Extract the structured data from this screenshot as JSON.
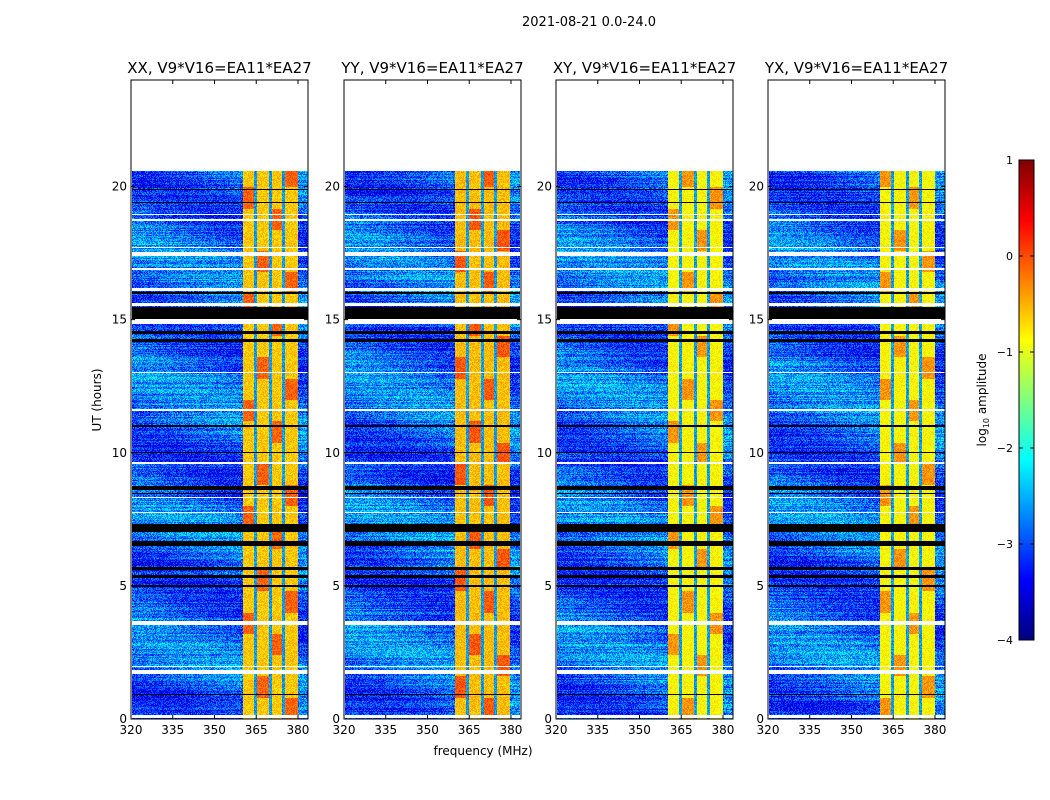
{
  "chart_data": {
    "type": "heatmap",
    "suptitle": "2021-08-21 0.0-24.0",
    "xlabel": "frequency (MHz)",
    "ylabel": "UT (hours)",
    "xlim": [
      320,
      383.6
    ],
    "ylim": [
      0,
      24
    ],
    "xticks": [
      320,
      335,
      350,
      365,
      380
    ],
    "yticks": [
      0,
      5,
      10,
      15,
      20
    ],
    "data_time_range": [
      0,
      20.6
    ],
    "panels": [
      {
        "title": "XX, V9*V16=EA11*EA27",
        "band_level": -0.6
      },
      {
        "title": "YY, V9*V16=EA11*EA27",
        "band_level": -0.55
      },
      {
        "title": "XY, V9*V16=EA11*EA27",
        "band_level": -0.85
      },
      {
        "title": "YX, V9*V16=EA11*EA27",
        "band_level": -0.85
      }
    ],
    "rfi_band_mhz": [
      360,
      380
    ],
    "rfi_band_gaps_mhz": [
      364.6,
      370,
      374.7
    ],
    "background_level": -2.9,
    "flagged_white_hours": [
      [
        0.05,
        0.15
      ],
      [
        1.7,
        1.85
      ],
      [
        1.95,
        2.0
      ],
      [
        3.55,
        3.7
      ],
      [
        7.75,
        7.8
      ],
      [
        8.3,
        8.35
      ],
      [
        9.6,
        9.65
      ],
      [
        11.6,
        11.65
      ],
      [
        13.0,
        13.05
      ],
      [
        14.85,
        15.05
      ],
      [
        15.55,
        15.65
      ],
      [
        16.1,
        16.2
      ],
      [
        16.9,
        16.95
      ],
      [
        17.4,
        17.55
      ],
      [
        17.7,
        17.75
      ],
      [
        18.75,
        18.8
      ],
      [
        18.95,
        19.0
      ],
      [
        20.6,
        24
      ]
    ],
    "black_hours": [
      [
        15.05,
        15.5
      ],
      [
        14.5,
        14.6
      ],
      [
        14.2,
        14.3
      ],
      [
        8.6,
        8.75
      ],
      [
        8.45,
        8.5
      ],
      [
        7.05,
        7.35
      ],
      [
        6.5,
        6.7
      ],
      [
        5.6,
        5.7
      ],
      [
        5.3,
        5.4
      ],
      [
        4.95,
        5.05
      ],
      [
        0.9,
        0.95
      ],
      [
        10.0,
        10.05
      ],
      [
        11.0,
        11.05
      ],
      [
        16.0,
        16.05
      ],
      [
        19.4,
        19.45
      ],
      [
        19.9,
        19.95
      ]
    ],
    "colorbar": {
      "label": "log10 amplitude",
      "label_main": "log",
      "label_sub": "10",
      "label_rest": " amplitude",
      "range": [
        -4,
        1
      ],
      "ticks": [
        1,
        0,
        -1,
        -2,
        -3,
        -4
      ],
      "tick_labels": [
        "1",
        "0",
        "−1",
        "−2",
        "−3",
        "−4"
      ],
      "colormap": "jet"
    }
  }
}
